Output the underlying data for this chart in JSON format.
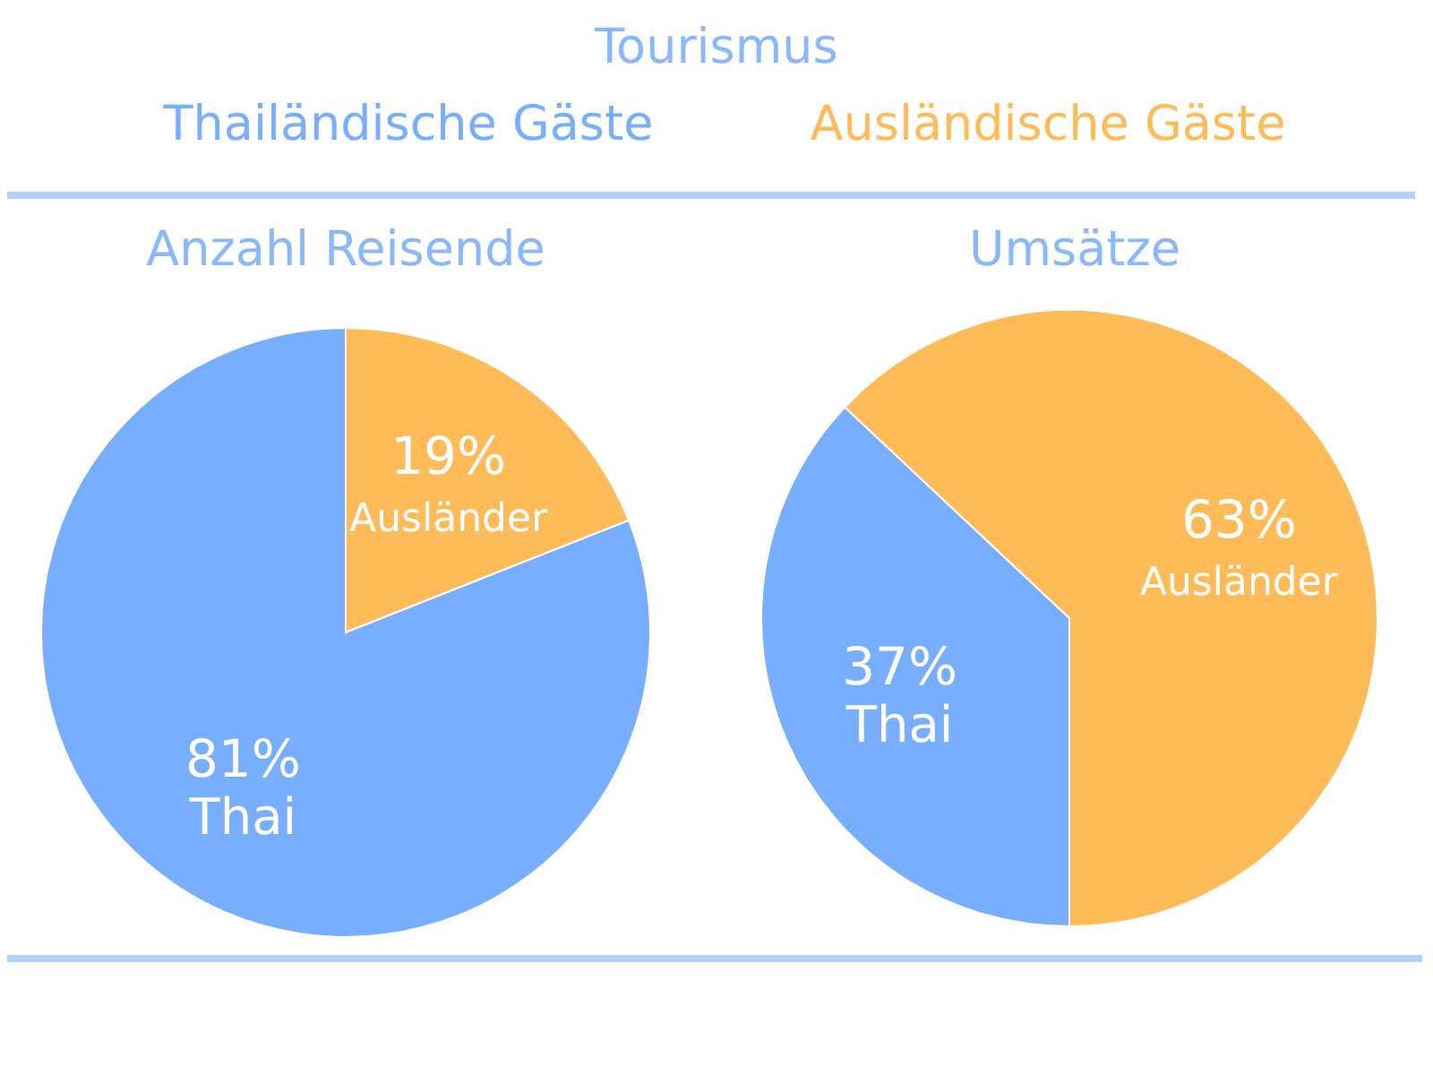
{
  "chart_data": [
    {
      "type": "other",
      "title": "Tourismus",
      "categories": [
        "Thailändische Gäste",
        "Ausländische Gäste"
      ],
      "colors": [
        "#78aeff",
        "#ffbb58"
      ]
    },
    {
      "type": "pie",
      "title": "Anzahl Reisende",
      "categories": [
        "Ausländer",
        "Thai"
      ],
      "values": [
        19,
        81
      ],
      "colors": [
        "#ffbb58",
        "#78aeff"
      ],
      "value_labels": [
        "19%",
        "81%"
      ]
    },
    {
      "type": "pie",
      "title": "Umsätze",
      "categories": [
        "Thai",
        "Ausländer"
      ],
      "values": [
        37,
        63
      ],
      "colors": [
        "#78aeff",
        "#ffbb58"
      ],
      "value_labels": [
        "37%",
        "63%"
      ]
    }
  ]
}
